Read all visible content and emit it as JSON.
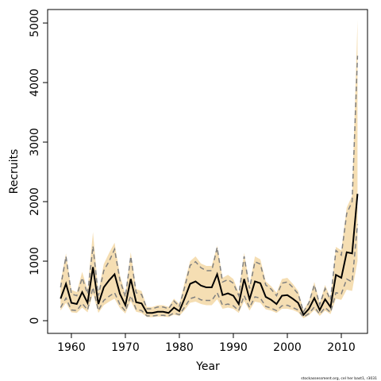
{
  "chart_data": {
    "type": "line",
    "xlabel": "Year",
    "ylabel": "Recruits",
    "footnote": "stockassessment.org, cel her bast1, r3031",
    "x": [
      1958,
      1959,
      1960,
      1961,
      1962,
      1963,
      1964,
      1965,
      1966,
      1967,
      1968,
      1969,
      1970,
      1971,
      1972,
      1973,
      1974,
      1975,
      1976,
      1977,
      1978,
      1979,
      1980,
      1981,
      1982,
      1983,
      1984,
      1985,
      1986,
      1987,
      1988,
      1989,
      1990,
      1991,
      1992,
      1993,
      1994,
      1995,
      1996,
      1997,
      1998,
      1999,
      2000,
      2001,
      2002,
      2003,
      2004,
      2005,
      2006,
      2007,
      2008,
      2009,
      2010,
      2011,
      2012,
      2013
    ],
    "band": {
      "color": "#f5deb3",
      "upper": [
        650,
        1130,
        520,
        480,
        820,
        520,
        1490,
        480,
        950,
        1140,
        1310,
        760,
        450,
        1150,
        530,
        500,
        230,
        230,
        260,
        260,
        230,
        370,
        280,
        650,
        1000,
        1080,
        960,
        920,
        920,
        1260,
        720,
        770,
        700,
        470,
        1140,
        600,
        1080,
        1030,
        660,
        580,
        470,
        700,
        720,
        620,
        500,
        180,
        330,
        650,
        300,
        600,
        380,
        1240,
        1180,
        1900,
        2100,
        5050
      ],
      "lower": [
        170,
        300,
        140,
        130,
        220,
        140,
        450,
        130,
        260,
        320,
        370,
        210,
        120,
        330,
        150,
        130,
        60,
        60,
        70,
        70,
        60,
        100,
        80,
        180,
        300,
        320,
        280,
        260,
        260,
        360,
        200,
        220,
        200,
        130,
        330,
        170,
        320,
        300,
        190,
        170,
        130,
        200,
        200,
        180,
        140,
        40,
        90,
        180,
        80,
        170,
        110,
        370,
        350,
        520,
        500,
        1000
      ]
    },
    "series": [
      {
        "color": "#000000",
        "dashed": false,
        "values": [
          370,
          620,
          300,
          280,
          480,
          300,
          900,
          280,
          560,
          680,
          780,
          450,
          260,
          700,
          310,
          290,
          130,
          130,
          150,
          150,
          130,
          220,
          160,
          380,
          620,
          660,
          590,
          560,
          560,
          780,
          430,
          460,
          420,
          280,
          700,
          360,
          660,
          630,
          400,
          350,
          280,
          420,
          430,
          370,
          300,
          100,
          200,
          380,
          180,
          360,
          230,
          770,
          720,
          1150,
          1130,
          2130
        ]
      },
      {
        "color": "#808080",
        "dashed": true,
        "values": [
          560,
          1080,
          450,
          420,
          720,
          450,
          1250,
          420,
          840,
          1000,
          1200,
          680,
          400,
          1080,
          470,
          440,
          200,
          200,
          230,
          230,
          200,
          330,
          240,
          570,
          930,
          990,
          890,
          840,
          840,
          1230,
          650,
          690,
          630,
          420,
          1080,
          540,
          990,
          950,
          600,
          530,
          420,
          630,
          650,
          560,
          450,
          150,
          300,
          600,
          270,
          540,
          350,
          1180,
          1100,
          1800,
          2000,
          4450
        ]
      },
      {
        "color": "#808080",
        "dashed": true,
        "values": [
          220,
          380,
          180,
          170,
          290,
          180,
          560,
          170,
          340,
          410,
          470,
          270,
          160,
          420,
          190,
          170,
          80,
          80,
          90,
          90,
          80,
          130,
          100,
          230,
          370,
          400,
          350,
          340,
          340,
          470,
          260,
          280,
          250,
          170,
          420,
          220,
          400,
          380,
          240,
          210,
          170,
          250,
          260,
          220,
          180,
          60,
          120,
          230,
          110,
          220,
          140,
          470,
          450,
          700,
          650,
          1620
        ]
      }
    ],
    "xlim": [
      1955.6,
      2014.85
    ],
    "xticks": [
      1960,
      1970,
      1980,
      1990,
      2000,
      2010
    ],
    "ylim": [
      -213,
      5227
    ],
    "yticks": [
      0,
      1000,
      2000,
      3000,
      4000,
      5000
    ]
  }
}
